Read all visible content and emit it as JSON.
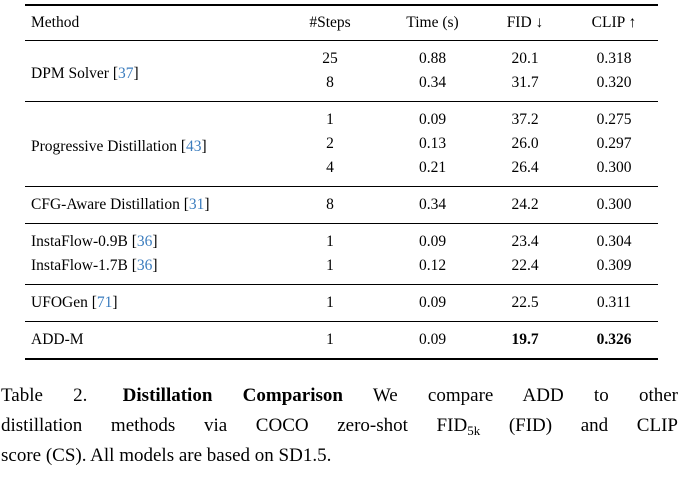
{
  "table": {
    "columns": [
      "Method",
      "#Steps",
      "Time (s)",
      "FID ↓",
      "CLIP ↑"
    ],
    "groups": [
      {
        "entries": [
          {
            "method": "DPM Solver",
            "citation": "37",
            "rows": [
              {
                "steps": "25",
                "time": "0.88",
                "fid": "20.1",
                "clip": "0.318"
              },
              {
                "steps": "8",
                "time": "0.34",
                "fid": "31.7",
                "clip": "0.320"
              }
            ]
          }
        ]
      },
      {
        "entries": [
          {
            "method": "Progressive Distillation",
            "citation": "43",
            "rows": [
              {
                "steps": "1",
                "time": "0.09",
                "fid": "37.2",
                "clip": "0.275"
              },
              {
                "steps": "2",
                "time": "0.13",
                "fid": "26.0",
                "clip": "0.297"
              },
              {
                "steps": "4",
                "time": "0.21",
                "fid": "26.4",
                "clip": "0.300"
              }
            ]
          }
        ]
      },
      {
        "entries": [
          {
            "method": "CFG-Aware Distillation",
            "citation": "31",
            "rows": [
              {
                "steps": "8",
                "time": "0.34",
                "fid": "24.2",
                "clip": "0.300"
              }
            ]
          }
        ]
      },
      {
        "entries": [
          {
            "method": "InstaFlow-0.9B",
            "citation": "36",
            "rows": [
              {
                "steps": "1",
                "time": "0.09",
                "fid": "23.4",
                "clip": "0.304"
              }
            ]
          },
          {
            "method": "InstaFlow-1.7B",
            "citation": "36",
            "rows": [
              {
                "steps": "1",
                "time": "0.12",
                "fid": "22.4",
                "clip": "0.309"
              }
            ]
          }
        ]
      },
      {
        "entries": [
          {
            "method": "UFOGen",
            "citation": "71",
            "rows": [
              {
                "steps": "1",
                "time": "0.09",
                "fid": "22.5",
                "clip": "0.311"
              }
            ]
          }
        ]
      },
      {
        "entries": [
          {
            "method": "ADD-M",
            "citation": null,
            "rows": [
              {
                "steps": "1",
                "time": "0.09",
                "fid": "19.7",
                "clip": "0.326",
                "fid_bold": true,
                "clip_bold": true
              }
            ]
          }
        ]
      }
    ]
  },
  "caption": {
    "line1_label": "Table 2.",
    "line1_title": "Distillation Comparison",
    "line1_rest": "We compare ADD to other",
    "line2_pre": "distillation methods via COCO zero-shot FID",
    "line2_sub": "5k",
    "line2_post": "(FID) and CLIP",
    "line3": "score (CS). All models are based on SD1.5."
  },
  "colors": {
    "citation_blue": "#3c7dbe",
    "text": "#000000",
    "background": "#ffffff",
    "rule": "#000000"
  }
}
